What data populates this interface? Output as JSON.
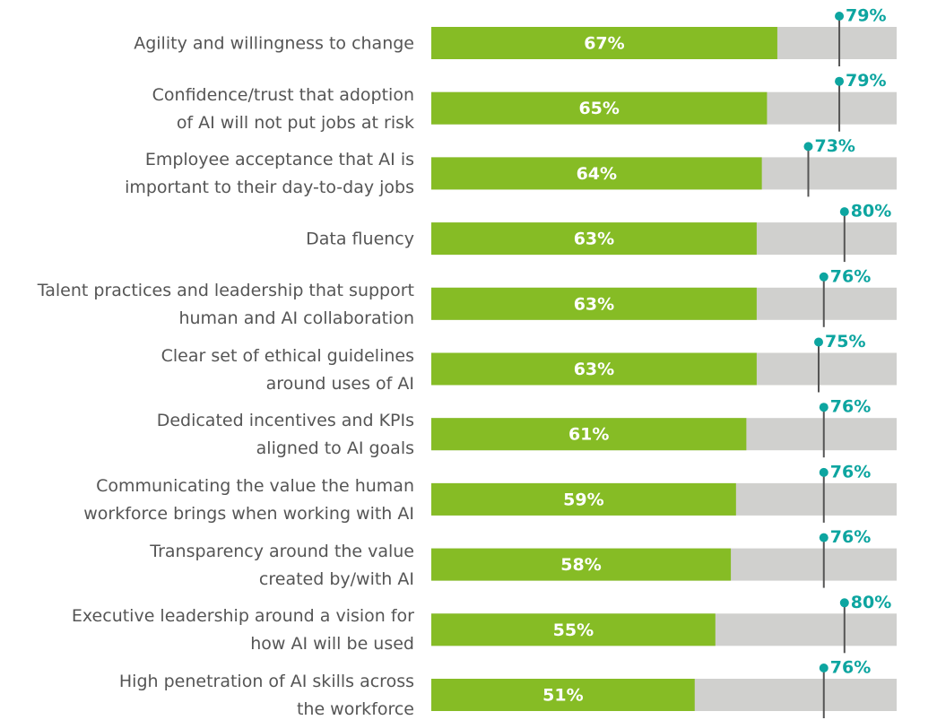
{
  "chart_data": {
    "type": "bar",
    "orientation": "horizontal",
    "categories": [
      "Agility and willingness to change",
      "Confidence/trust that adoption\nof AI will not put jobs at risk",
      "Employee acceptance that AI is\nimportant to their day-to-day jobs",
      "Data fluency",
      "Talent practices and leadership that support\nhuman and AI collaboration",
      "Clear set of ethical guidelines\naround uses of AI",
      "Dedicated incentives and KPIs\naligned to AI goals",
      "Communicating the value the human\nworkforce brings when working with AI",
      "Transparency around the value\ncreated by/with AI",
      "Executive leadership around a vision for\nhow AI will be used",
      "High penetration of AI skills across\nthe workforce"
    ],
    "values": [
      67,
      65,
      64,
      63,
      63,
      63,
      61,
      59,
      58,
      55,
      51
    ],
    "value_labels": [
      "67%",
      "65%",
      "64%",
      "63%",
      "63%",
      "63%",
      "61%",
      "59%",
      "58%",
      "55%",
      "51%"
    ],
    "color": "#86bc25",
    "marker_values": [
      79,
      79,
      73,
      80,
      76,
      75,
      76,
      76,
      76,
      80,
      76
    ],
    "marker_value_labels": [
      "79%",
      "79%",
      "73%",
      "80%",
      "76%",
      "75%",
      "76%",
      "76%",
      "76%",
      "80%",
      "76%"
    ],
    "marker_color": "#0da5a0",
    "xlim": [
      0,
      100
    ]
  }
}
